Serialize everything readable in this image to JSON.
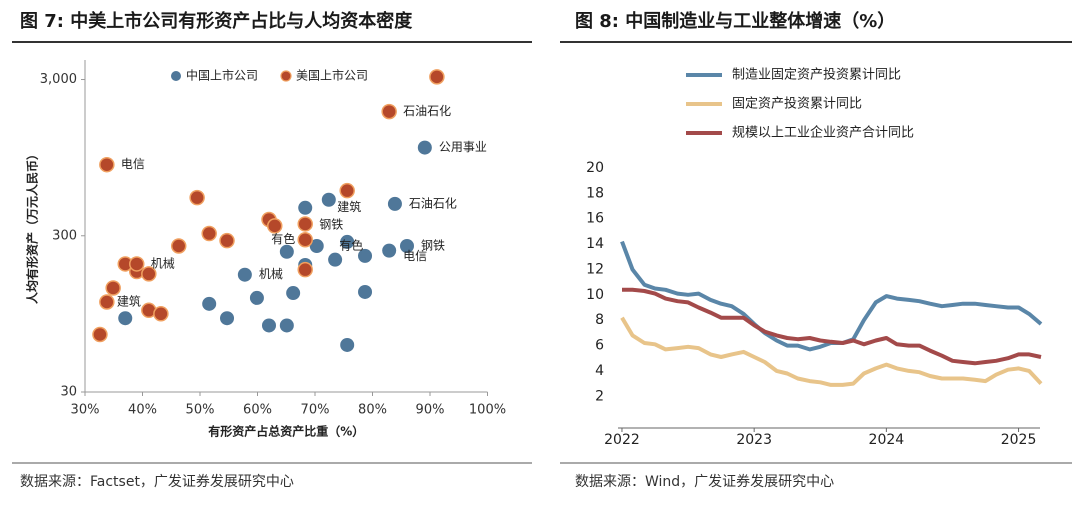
{
  "chart_data": [
    {
      "type": "scatter",
      "title": "图 7: 中美上市公司有形资产占比与人均资本密度",
      "source": "数据来源：Factset，广发证券发展研究中心",
      "x_label": "有形资产占总资产比重（%）",
      "y_label": "人均有形资产（万元人民币）",
      "ylog": true,
      "xlim": [
        30,
        100
      ],
      "ylim": [
        30,
        4000
      ],
      "xticks": [
        {
          "value": 30,
          "label": "30%"
        },
        {
          "value": 40,
          "label": "40%"
        },
        {
          "value": 50,
          "label": "50%"
        },
        {
          "value": 60,
          "label": "60%"
        },
        {
          "value": 70,
          "label": "70%"
        },
        {
          "value": 80,
          "label": "80%"
        },
        {
          "value": 90,
          "label": "90%"
        },
        {
          "value": 100,
          "label": "100%"
        }
      ],
      "yticks": [
        30,
        300,
        {
          "value": 3000,
          "label": "3,000"
        }
      ],
      "series": [
        {
          "name": "中国上市公司",
          "color": "#4f7799",
          "x": [
            37,
            51.6,
            54.7,
            57.8,
            59.9,
            62,
            65.1,
            65.1,
            66.2,
            68.3,
            68.3,
            70.3,
            72.4,
            73.5,
            75.6,
            75.6,
            78.7,
            78.7,
            82.9,
            83.9,
            86,
            89.1
          ],
          "y": [
            89,
            110,
            89,
            169,
            120,
            80,
            80,
            237,
            129,
            453,
            195,
            258,
            510,
            211,
            60,
            274,
            223,
            131,
            241,
            480,
            258,
            1100
          ]
        },
        {
          "name": "美国上市公司",
          "color": "#b5482a",
          "x": [
            32.6,
            33.8,
            33.8,
            34.9,
            37,
            39,
            39,
            41.1,
            41.1,
            43.2,
            46.3,
            49.5,
            51.6,
            54.7,
            62,
            63,
            68.3,
            68.3,
            68.3,
            75.6,
            82.9,
            91.2
          ],
          "y": [
            70,
            855,
            113,
            139,
            198,
            177,
            198,
            171,
            100,
            95,
            258,
            526,
            310,
            279,
            381,
            347,
            357,
            283,
            182,
            583,
            1870,
            3120
          ]
        }
      ],
      "annotations": [
        {
          "text": "电信",
          "series": 1,
          "point": 1
        },
        {
          "text": "石油石化",
          "series": 1,
          "point": 20
        },
        {
          "text": "公用事业",
          "series": 0,
          "point": 21
        },
        {
          "text": "石油石化",
          "series": 0,
          "point": 19
        },
        {
          "text": "建筑",
          "series": 1,
          "point": 19
        },
        {
          "text": "钢铁",
          "series": 1,
          "point": 16
        },
        {
          "text": "有色",
          "series": 1,
          "point": 17
        },
        {
          "text": "有色",
          "series": 0,
          "point": 15
        },
        {
          "text": "电信",
          "series": 0,
          "point": 18
        },
        {
          "text": "钢铁",
          "series": 0,
          "point": 20
        },
        {
          "text": "机械",
          "series": 1,
          "point": 6
        },
        {
          "text": "建筑",
          "series": 1,
          "point": 2
        },
        {
          "text": "机械",
          "series": 0,
          "point": 3
        }
      ]
    },
    {
      "type": "line",
      "title": "图 8: 中国制造业与工业整体增速（%）",
      "source": "数据来源：Wind，广发证券发展研究中心",
      "xlim": [
        2021.97,
        2025.2
      ],
      "ylim": [
        -0.5,
        20
      ],
      "xticks": [
        2022,
        2023,
        2024,
        2025
      ],
      "yticks": [
        2,
        4,
        6,
        8,
        10,
        12,
        14,
        16,
        18,
        20
      ],
      "x": [
        2022,
        2022.08,
        2022.17,
        2022.25,
        2022.33,
        2022.42,
        2022.5,
        2022.58,
        2022.67,
        2022.75,
        2022.83,
        2022.92,
        2023,
        2023.08,
        2023.17,
        2023.25,
        2023.33,
        2023.42,
        2023.5,
        2023.58,
        2023.67,
        2023.75,
        2023.83,
        2023.92,
        2024,
        2024.08,
        2024.17,
        2024.25,
        2024.33,
        2024.42,
        2024.5,
        2024.58,
        2024.67,
        2024.75,
        2024.83,
        2024.92,
        2025,
        2025.08,
        2025.17
      ],
      "series": [
        {
          "name": "制造业固定资产投资累计同比",
          "color": "#5a86a8",
          "values": [
            14.2,
            12.0,
            10.8,
            10.5,
            10.4,
            10.1,
            10.0,
            10.1,
            9.6,
            9.3,
            9.1,
            8.5,
            7.7,
            7.0,
            6.4,
            6.0,
            6.0,
            5.7,
            5.9,
            6.2,
            6.2,
            6.5,
            8.0,
            9.4,
            9.9,
            9.7,
            9.6,
            9.5,
            9.3,
            9.1,
            9.2,
            9.3,
            9.3,
            9.2,
            9.1,
            9.0,
            9.0,
            8.5,
            7.7
          ]
        },
        {
          "name": "固定资产投资累计同比",
          "color": "#e8c48a",
          "values": [
            8.2,
            6.8,
            6.2,
            6.1,
            5.7,
            5.8,
            5.9,
            5.8,
            5.3,
            5.1,
            5.3,
            5.5,
            5.1,
            4.7,
            4.0,
            3.8,
            3.4,
            3.2,
            3.1,
            2.9,
            2.9,
            3.0,
            3.8,
            4.2,
            4.5,
            4.2,
            4.0,
            3.9,
            3.6,
            3.4,
            3.4,
            3.4,
            3.3,
            3.2,
            3.7,
            4.1,
            4.2,
            4.0,
            3.0
          ]
        },
        {
          "name": "规模以上工业企业资产合计同比",
          "color": "#a34a4a",
          "values": [
            10.4,
            10.4,
            10.3,
            10.1,
            9.7,
            9.5,
            9.4,
            9.0,
            8.6,
            8.2,
            8.2,
            8.2,
            7.6,
            7.1,
            6.8,
            6.6,
            6.5,
            6.6,
            6.4,
            6.3,
            6.2,
            6.4,
            6.1,
            6.4,
            6.6,
            6.1,
            6.0,
            6.0,
            5.6,
            5.2,
            4.8,
            4.7,
            4.6,
            4.7,
            4.8,
            5.0,
            5.3,
            5.3,
            5.1
          ]
        }
      ]
    }
  ]
}
